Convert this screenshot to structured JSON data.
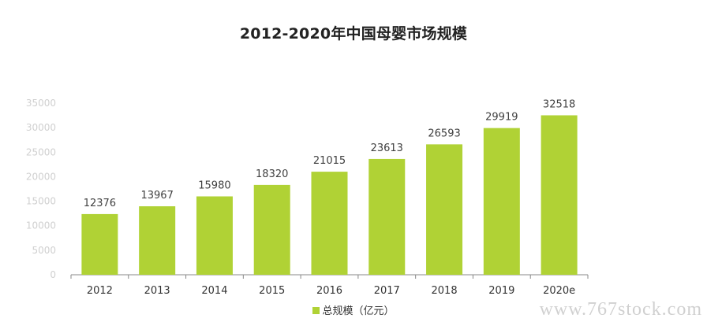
{
  "chart_data": {
    "type": "bar",
    "title": "2012-2020年中国母婴市场规模",
    "categories": [
      "2012",
      "2013",
      "2014",
      "2015",
      "2016",
      "2017",
      "2018",
      "2019",
      "2020e"
    ],
    "series": [
      {
        "name": "总规模（亿元）",
        "values": [
          12376,
          13967,
          15980,
          18320,
          21015,
          23613,
          26593,
          29919,
          32518
        ]
      }
    ],
    "ylim": [
      0,
      35000
    ],
    "yticks": [
      "0",
      "5000",
      "10000",
      "15000",
      "20000",
      "25000",
      "30000",
      "35000"
    ],
    "grid": false,
    "legend_position": "bottom",
    "bar_color": "#b0d235"
  },
  "watermark": "www.767stock.com"
}
